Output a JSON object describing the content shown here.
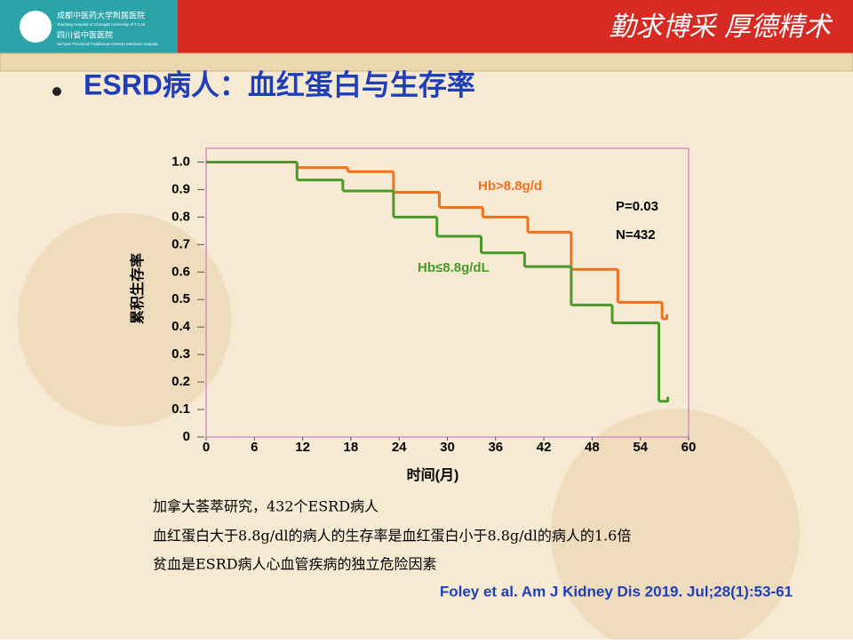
{
  "header": {
    "hospital_cn": "成都中医药大学附属医院",
    "hospital_en": "Teaching Hospital of Chengdu University of T.C.M",
    "hospital2_cn": "四川省中医医院",
    "hospital2_en": "Sichuan Provincial Traditional Chinese Medicine Hospital",
    "motto": "勤求博采  厚德精术"
  },
  "slide_title": "ESRD病人：血红蛋白与生存率",
  "chart_data": {
    "type": "line",
    "step": true,
    "ylabel": "累积生存率",
    "xlabel": "时间(月)",
    "xlim": [
      0,
      60
    ],
    "xticks": [
      0,
      6,
      12,
      18,
      24,
      30,
      36,
      42,
      48,
      54,
      60
    ],
    "ylim": [
      0,
      1.05
    ],
    "yticks": [
      {
        "value": 0,
        "label": "0"
      },
      0.1,
      0.2,
      0.3,
      0.4,
      0.5,
      0.6,
      0.7,
      0.8,
      0.9,
      {
        "value": 1,
        "label": "1.0"
      }
    ],
    "grid": false,
    "series": [
      {
        "name": "Hb>8.8g/d",
        "color": "#f07020",
        "x": [
          0,
          11.3,
          17.6,
          23.3,
          29,
          34.4,
          40,
          45.4,
          51.2,
          56.7,
          57.3
        ],
        "values": [
          1,
          0.98,
          0.965,
          0.89,
          0.835,
          0.8,
          0.745,
          0.61,
          0.49,
          0.43,
          0.43
        ]
      },
      {
        "name": "Hb≤8.8g/dL",
        "color": "#4a9a2a",
        "x": [
          0,
          11.3,
          17,
          23.3,
          28.7,
          34.2,
          39.6,
          45.4,
          50.5,
          56.3,
          57.4
        ],
        "values": [
          1,
          0.935,
          0.895,
          0.8,
          0.73,
          0.67,
          0.62,
          0.48,
          0.415,
          0.13,
          0.13
        ]
      }
    ],
    "annotations": [
      "P=0.03",
      "N=432"
    ]
  },
  "notes": [
    "加拿大荟萃研究，432个ESRD病人",
    "血红蛋白大于8.8g/dl的病人的生存率是血红蛋白小于8.8g/dl的病人的1.6倍",
    "贫血是ESRD病人心血管疾病的独立危险因素"
  ],
  "citation": "Foley et al. Am J Kidney Dis 2019. Jul;28(1):53-61"
}
